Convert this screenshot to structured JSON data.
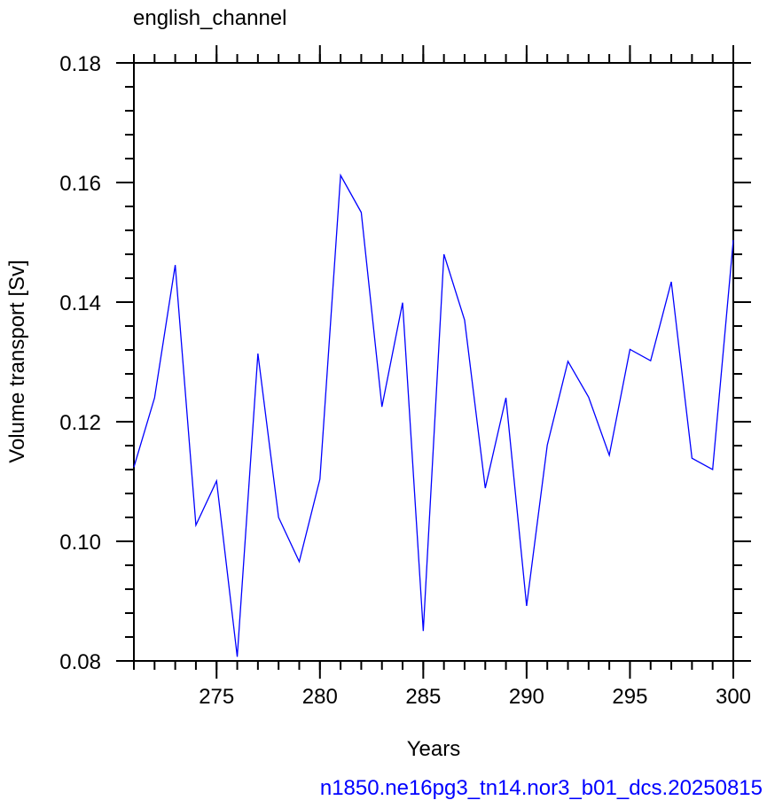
{
  "chart_data": {
    "type": "line",
    "title": "english_channel",
    "annotation": "n1850.ne16pg3_tn14.nor3_b01_dcs.20250815",
    "x_label": "Years",
    "y_label": "Volume transport [Sv]",
    "x": [
      271,
      272,
      273,
      274,
      275,
      276,
      277,
      278,
      279,
      280,
      281,
      282,
      283,
      284,
      285,
      286,
      287,
      288,
      289,
      290,
      291,
      292,
      293,
      294,
      295,
      296,
      297,
      298,
      299,
      300
    ],
    "values": [
      0.1124,
      0.124,
      0.1462,
      0.1027,
      0.1101,
      0.0807,
      0.1314,
      0.104,
      0.0966,
      0.1104,
      0.1612,
      0.155,
      0.1225,
      0.1399,
      0.085,
      0.148,
      0.137,
      0.1089,
      0.124,
      0.0892,
      0.1161,
      0.1301,
      0.1241,
      0.1144,
      0.1321,
      0.1302,
      0.1434,
      0.1139,
      0.112,
      0.1504
    ],
    "color": "#0000ff",
    "xlim": [
      271,
      300
    ],
    "xticks": [
      275,
      280,
      285,
      290,
      295,
      300
    ],
    "ylim": [
      0.08,
      0.18
    ],
    "yticks": [
      0.08,
      {
        "value": 0.1,
        "label": "0.10"
      },
      0.12,
      0.14,
      0.16,
      0.18
    ]
  }
}
